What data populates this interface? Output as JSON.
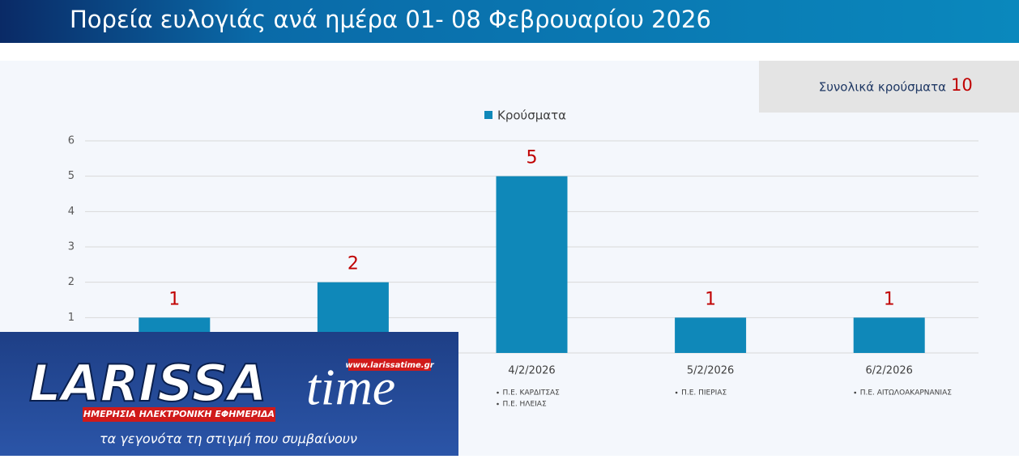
{
  "chart_data": {
    "type": "bar",
    "title": "Πορεία ευλογιάς ανά ημέρα 01- 08 Φεβρουαρίου 2026",
    "total_label": "Συνολικά κρούσματα",
    "total_value": 10,
    "categories": [
      null,
      null,
      "4/2/2026",
      "5/2/2026",
      "6/2/2026"
    ],
    "category_notes": [
      [],
      [],
      [
        "Π.Ε. ΚΑΡΔΙΤΣΑΣ",
        "Π.Ε. ΗΛΕΙΑΣ"
      ],
      [
        "Π.Ε. ΠΙΕΡΙΑΣ"
      ],
      [
        "Π.Ε. ΑΙΤΩΛΟΑΚΑΡΝΑΝΙΑΣ"
      ]
    ],
    "series": [
      {
        "name": "Κρούσματα",
        "color": "#0f88b9",
        "values": [
          1,
          2,
          5,
          1,
          1
        ]
      }
    ],
    "ylim": [
      0,
      6
    ],
    "yticks": [
      1,
      2,
      3,
      4,
      5,
      6
    ],
    "grid": true,
    "legend": "top",
    "value_label_color": "#c00000"
  },
  "logo": {
    "name_left": "LARISSA",
    "name_right": "time",
    "url": "www.larissatime.gr",
    "tagline": "ΗΜΕΡΗΣΙΑ ΗΛΕΚΤΡΟΝΙΚΗ ΕΦΗΜΕΡΙΔΑ",
    "slogan": "τα γεγονότα τη στιγμή που συμβαίνουν"
  }
}
